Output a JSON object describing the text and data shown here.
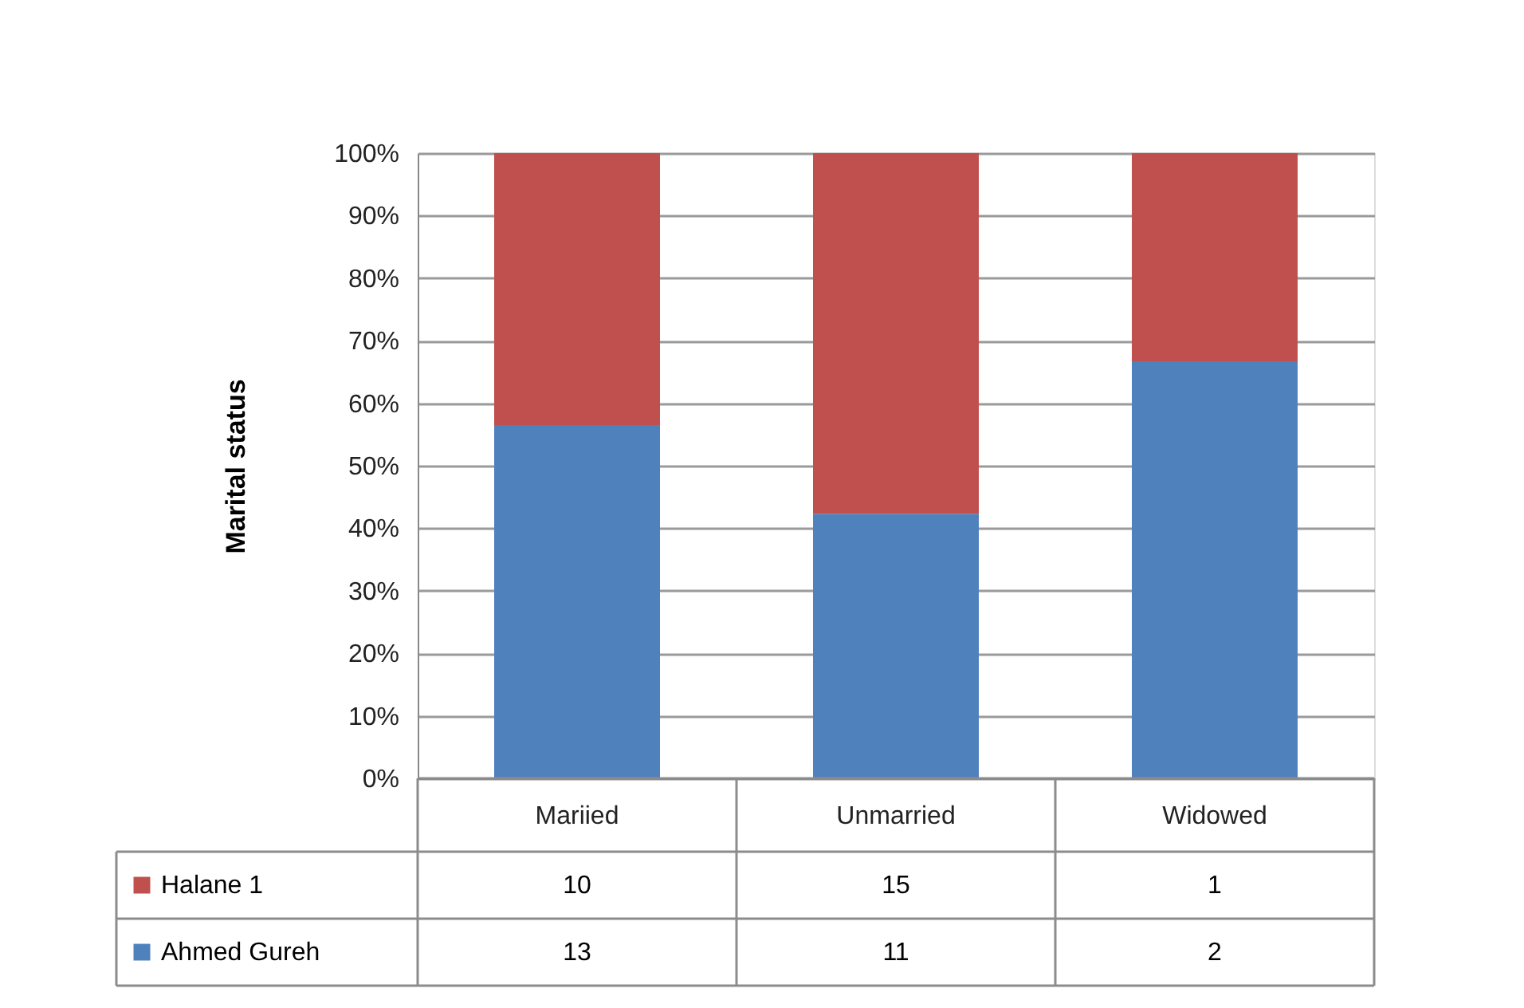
{
  "chart_data": {
    "type": "bar",
    "stacked": true,
    "ylabel": "Marital status",
    "categories": [
      "Mariied",
      "Unmarried",
      "Widowed"
    ],
    "series": [
      {
        "name": "Ahmed Gureh",
        "color": "#4f81bd",
        "values": [
          56.5,
          42.3,
          66.7
        ]
      },
      {
        "name": "Halane 1",
        "color": "#c0504d",
        "values": [
          43.5,
          57.7,
          33.3
        ]
      }
    ],
    "ylim": [
      0,
      100
    ],
    "yticks": [
      {
        "value": 0,
        "label": "0%"
      },
      {
        "value": 10,
        "label": "10%"
      },
      {
        "value": 20,
        "label": "20%"
      },
      {
        "value": 30,
        "label": "30%"
      },
      {
        "value": 40,
        "label": "40%"
      },
      {
        "value": 50,
        "label": "50%"
      },
      {
        "value": 60,
        "label": "60%"
      },
      {
        "value": 70,
        "label": "70%"
      },
      {
        "value": 80,
        "label": "80%"
      },
      {
        "value": 90,
        "label": "90%"
      },
      {
        "value": 100,
        "label": "100%"
      }
    ],
    "annotations": [
      "10",
      "15",
      "1",
      "13",
      "11",
      "2"
    ],
    "grid": "y",
    "legend": "bottom"
  }
}
